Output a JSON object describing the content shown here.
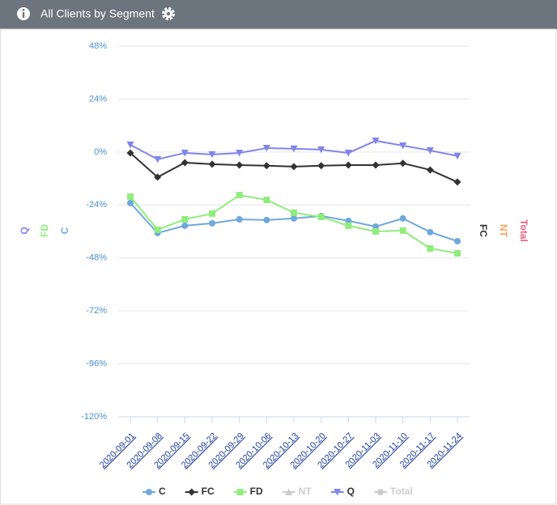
{
  "chart_data": {
    "type": "line",
    "title": "All Clients by Segment",
    "categories": [
      "2020-09-01",
      "2020-09-08",
      "2020-09-15",
      "2020-09-22",
      "2020-09-29",
      "2020-10-06",
      "2020-10-13",
      "2020-10-20",
      "2020-10-27",
      "2020-11-03",
      "2020-11-10",
      "2020-11-17",
      "2020-11-24"
    ],
    "series": [
      {
        "name": "C",
        "color": "#6fa8dc",
        "marker": "circle",
        "visible": true,
        "values": [
          -23.1,
          -36.7,
          -33.4,
          -32.3,
          -30.5,
          -30.8,
          -30.1,
          -29,
          -31.2,
          -33.8,
          -30.1,
          -36.3,
          -40.4
        ]
      },
      {
        "name": "FC",
        "color": "#333333",
        "marker": "diamond",
        "visible": true,
        "values": [
          -0.4,
          -11.4,
          -4.8,
          -5.5,
          -5.9,
          -6.2,
          -6.6,
          -6.2,
          -5.9,
          -5.9,
          -5.1,
          -8.1,
          -13.6
        ]
      },
      {
        "name": "FD",
        "color": "#90ed7d",
        "marker": "square",
        "visible": true,
        "values": [
          -20.2,
          -35.2,
          -30.5,
          -27.9,
          -19.5,
          -21.7,
          -27.5,
          -29.4,
          -33.4,
          -36,
          -35.6,
          -43.7,
          -45.9
        ]
      },
      {
        "name": "NT",
        "color": "#f7a35c",
        "marker": "triangle",
        "visible": false,
        "values": [
          null,
          null,
          null,
          null,
          null,
          null,
          null,
          null,
          null,
          null,
          null,
          null,
          null
        ]
      },
      {
        "name": "Q",
        "color": "#8085e9",
        "marker": "triangle-down",
        "visible": true,
        "values": [
          3.3,
          -3.3,
          -0.4,
          -1.1,
          -0.4,
          1.8,
          1.5,
          1.1,
          -0.4,
          5.1,
          2.9,
          0.7,
          -1.8
        ]
      },
      {
        "name": "Total",
        "color": "#f15c80",
        "marker": "circle",
        "visible": false,
        "values": [
          null,
          null,
          null,
          null,
          null,
          null,
          null,
          null,
          null,
          null,
          null,
          null,
          null
        ]
      }
    ],
    "left_axis_titles": [
      {
        "text": "Q",
        "color": "#8085e9"
      },
      {
        "text": "FD",
        "color": "#90ed7d"
      },
      {
        "text": "C",
        "color": "#6fa8dc"
      }
    ],
    "right_axis_titles": [
      {
        "text": "FC",
        "color": "#333333"
      },
      {
        "text": "NT",
        "color": "#f7a35c"
      },
      {
        "text": "Total",
        "color": "#f15c80"
      }
    ],
    "hidden_color": "#cccccc",
    "ylim": [
      -120,
      48
    ],
    "yticks": [
      {
        "value": 48,
        "label": "48%"
      },
      {
        "value": 24,
        "label": "24%"
      },
      {
        "value": 0,
        "label": "0%"
      },
      {
        "value": -24,
        "label": "-24%"
      },
      {
        "value": -48,
        "label": "-48%"
      },
      {
        "value": -72,
        "label": "-72%"
      },
      {
        "value": -96,
        "label": "-96%"
      },
      {
        "value": -120,
        "label": "-120%"
      }
    ],
    "grid": true
  }
}
